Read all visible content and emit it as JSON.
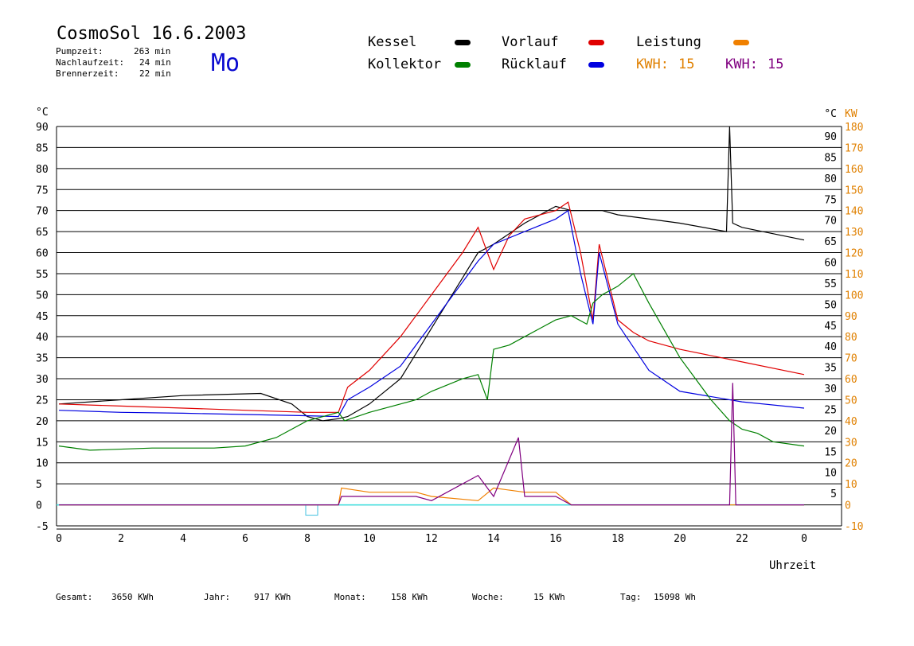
{
  "header": {
    "title": "CosmoSol 16.6.2003",
    "day": "Mo",
    "stats": [
      {
        "label": "Pumpzeit:",
        "value": "263 min"
      },
      {
        "label": "Nachlaufzeit:",
        "value": "24 min"
      },
      {
        "label": "Brennerzeit:",
        "value": "22 min"
      }
    ]
  },
  "legend": {
    "items": [
      {
        "label": "Kessel",
        "color": "#000000"
      },
      {
        "label": "Vorlauf",
        "color": "#e00000"
      },
      {
        "label": "Leistung",
        "color": "#f08000"
      },
      {
        "label": "Kollektor",
        "color": "#008000"
      },
      {
        "label": "Rücklauf",
        "color": "#0000e0"
      }
    ],
    "kwh_orange": {
      "label": "KWH:",
      "value": "15",
      "color": "#e08000"
    },
    "kwh_purple": {
      "label": "KWH:",
      "value": "15",
      "color": "#800080"
    }
  },
  "footer": {
    "items": [
      {
        "label": "Gesamt:",
        "value": "3650 KWh"
      },
      {
        "label": "Jahr:",
        "value": "917 KWh"
      },
      {
        "label": "Monat:",
        "value": "158 KWh"
      },
      {
        "label": "Woche:",
        "value": "15 KWh"
      },
      {
        "label": "Tag:",
        "value": "15098 Wh"
      }
    ]
  },
  "chart_data": {
    "type": "line",
    "xlabel": "Uhrzeit",
    "x_ticks": [
      "0",
      "2",
      "4",
      "6",
      "8",
      "10",
      "12",
      "14",
      "16",
      "18",
      "20",
      "22",
      "0"
    ],
    "xlim": [
      0,
      24
    ],
    "ylabel_left": "°C",
    "ylabel_right_temp": "°C",
    "ylabel_right_power": "KW",
    "ylim": [
      -5,
      90
    ],
    "y_ticks": [
      -5,
      0,
      5,
      10,
      15,
      20,
      25,
      30,
      35,
      40,
      45,
      50,
      55,
      60,
      65,
      70,
      75,
      80,
      85,
      90
    ],
    "y_right_temp_ticks": [
      5,
      10,
      15,
      20,
      25,
      30,
      35,
      40,
      45,
      50,
      55,
      60,
      65,
      70,
      75,
      80,
      85,
      90
    ],
    "y_power_ticks": [
      -10,
      0,
      10,
      20,
      30,
      40,
      50,
      60,
      70,
      80,
      90,
      100,
      110,
      120,
      130,
      140,
      150,
      160,
      170,
      180
    ],
    "grid": true,
    "series": [
      {
        "name": "Kessel",
        "color": "#000000",
        "x": [
          0,
          2,
          4,
          6.5,
          7.5,
          8,
          8.5,
          9,
          9.3,
          10,
          11,
          12,
          13,
          13.5,
          14,
          15,
          16,
          16.5,
          17,
          17.5,
          18,
          20,
          21.5,
          21.6,
          21.7,
          22,
          24
        ],
        "y": [
          24,
          25,
          26,
          26.5,
          24,
          21,
          20,
          20.5,
          21,
          24,
          30,
          42,
          54,
          60,
          62,
          67,
          71,
          70,
          70,
          70,
          69,
          67,
          65,
          90,
          67,
          66,
          63
        ]
      },
      {
        "name": "Vorlauf",
        "color": "#e00000",
        "x": [
          0,
          2,
          4,
          6,
          8,
          9,
          9.3,
          10,
          11,
          11.5,
          12,
          13,
          13.5,
          14,
          14.5,
          15,
          16,
          16.4,
          16.8,
          17.2,
          17.4,
          18,
          18.5,
          19,
          20,
          22,
          24
        ],
        "y": [
          24,
          23.5,
          23,
          22.5,
          22,
          22,
          28,
          32,
          40,
          45,
          50,
          60,
          66,
          56,
          64,
          68,
          70,
          72,
          60,
          44,
          62,
          44,
          41,
          39,
          37,
          34,
          31
        ]
      },
      {
        "name": "Rücklauf",
        "color": "#0000e0",
        "x": [
          0,
          2,
          4,
          6,
          8,
          9,
          9.3,
          10,
          11,
          12,
          13,
          13.5,
          14,
          15,
          16,
          16.4,
          16.8,
          17.2,
          17.4,
          18,
          19,
          20,
          22,
          24
        ],
        "y": [
          22.5,
          22,
          21.8,
          21.5,
          21.2,
          21,
          25,
          28,
          33,
          43,
          53,
          58,
          62,
          65,
          68,
          70,
          55,
          43,
          60,
          43,
          32,
          27,
          24.5,
          23
        ]
      },
      {
        "name": "Kollektor",
        "color": "#008000",
        "x": [
          0,
          1,
          3,
          5,
          6,
          7,
          8,
          9,
          9.2,
          10,
          11,
          11.5,
          12,
          13,
          13.5,
          13.8,
          14,
          14.5,
          15,
          15.5,
          16,
          16.5,
          17,
          17.2,
          17.5,
          18,
          18.5,
          19,
          20,
          21,
          21.6,
          22,
          22.5,
          23,
          24
        ],
        "y": [
          14,
          13,
          13.5,
          13.5,
          14,
          16,
          20,
          22,
          20,
          22,
          24,
          25,
          27,
          30,
          31,
          25,
          37,
          38,
          40,
          42,
          44,
          45,
          43,
          48,
          50,
          52,
          55,
          48,
          35,
          25,
          20,
          18,
          17,
          15,
          14
        ]
      },
      {
        "name": "Leistung",
        "color": "#f08000",
        "x": [
          0,
          9,
          9.1,
          10,
          11,
          11.5,
          12,
          13.5,
          14,
          15,
          16,
          16.5,
          24
        ],
        "y": [
          0,
          0,
          4,
          3,
          3,
          3,
          2,
          1,
          4,
          3,
          3,
          0,
          0
        ]
      },
      {
        "name": "KWH",
        "color": "#800080",
        "x": [
          0,
          9,
          9.1,
          10,
          11,
          11.5,
          12,
          13.5,
          14,
          14.8,
          15,
          16,
          16.5,
          21.6,
          21.7,
          21.8,
          24
        ],
        "y": [
          0,
          0,
          2,
          2,
          2,
          2,
          1,
          7,
          2,
          16,
          2,
          2,
          0,
          0,
          29,
          0,
          0
        ]
      }
    ]
  }
}
